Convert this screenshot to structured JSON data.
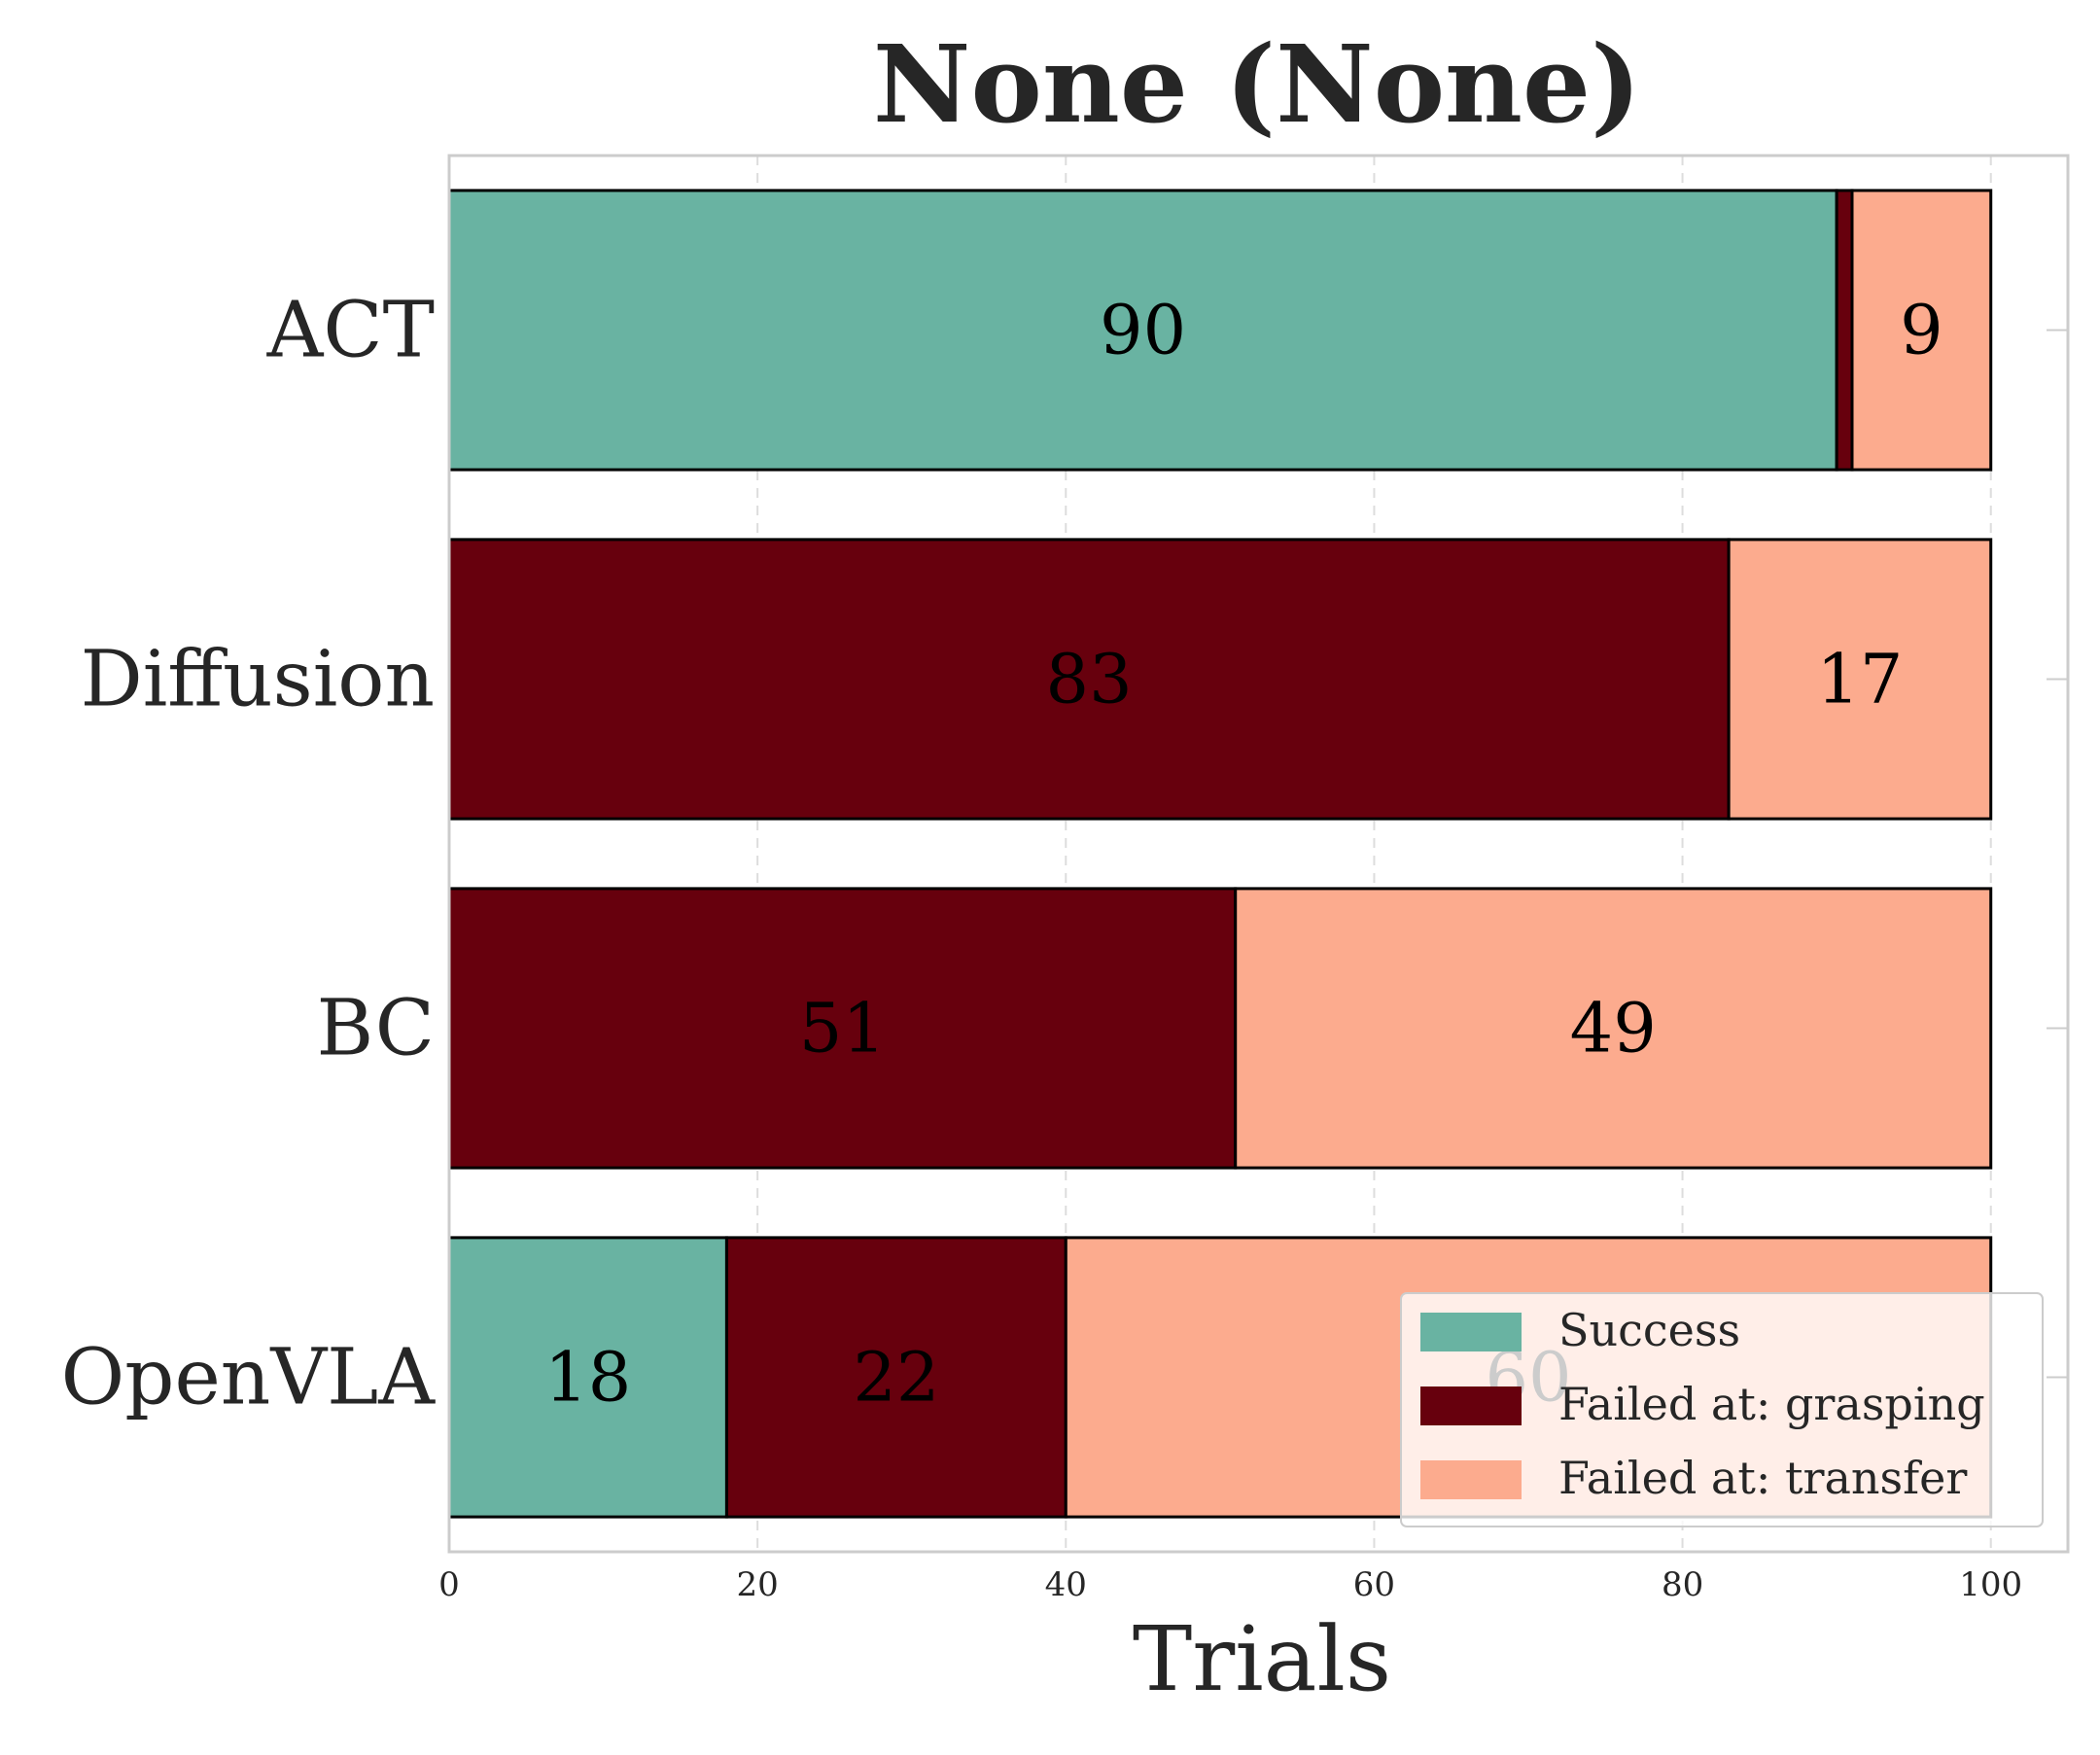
{
  "chart_data": {
    "type": "bar",
    "orientation": "horizontal",
    "stacked": true,
    "title": "None (None)",
    "xlabel": "Trials",
    "ylabel": "",
    "xlim": [
      0,
      105
    ],
    "xticks": [
      0,
      20,
      40,
      60,
      80,
      100
    ],
    "grid": "x-dashed",
    "categories": [
      "ACT",
      "Diffusion",
      "BC",
      "OpenVLA"
    ],
    "series": [
      {
        "name": "Success",
        "color": "#69b3a2",
        "values": [
          90,
          0,
          0,
          18
        ]
      },
      {
        "name": "Failed at: grasping",
        "color": "#67000d",
        "values": [
          1,
          83,
          51,
          22
        ]
      },
      {
        "name": "Failed at: transfer",
        "color": "#fcab8e",
        "values": [
          9,
          17,
          49,
          60
        ]
      }
    ],
    "legend": {
      "position": "bottom-right"
    }
  }
}
